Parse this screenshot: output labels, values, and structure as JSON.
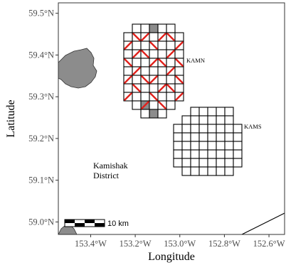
{
  "axes": {
    "x_title": "Longitude",
    "y_title": "Latitude",
    "x_ticks": [
      {
        "lon": -153.4,
        "label": "153.4°W"
      },
      {
        "lon": -153.2,
        "label": "153.2°W"
      },
      {
        "lon": -153.0,
        "label": "153.0°W"
      },
      {
        "lon": -152.8,
        "label": "152.8°W"
      },
      {
        "lon": -152.6,
        "label": "152.6°W"
      }
    ],
    "y_ticks": [
      {
        "lat": 59.0,
        "label": "59.0°N"
      },
      {
        "lat": 59.1,
        "label": "59.1°N"
      },
      {
        "lat": 59.2,
        "label": "59.2°N"
      },
      {
        "lat": 59.3,
        "label": "59.3°N"
      },
      {
        "lat": 59.4,
        "label": "59.4°N"
      },
      {
        "lat": 59.5,
        "label": "59.5°N"
      }
    ],
    "x_range": [
      -153.545,
      -152.53
    ],
    "y_range": [
      58.97,
      59.525
    ]
  },
  "regions": {
    "kamn": {
      "label": "KAMN"
    },
    "kams": {
      "label": "KAMS"
    }
  },
  "district_label": {
    "line1": "Kamishak",
    "line2": "District"
  },
  "scale_bar": {
    "label": "10 km"
  },
  "colors": {
    "land": "#8c8c8c",
    "grid_cell": "#000000",
    "highlight": "#e0201b",
    "panel_border": "#333333"
  }
}
